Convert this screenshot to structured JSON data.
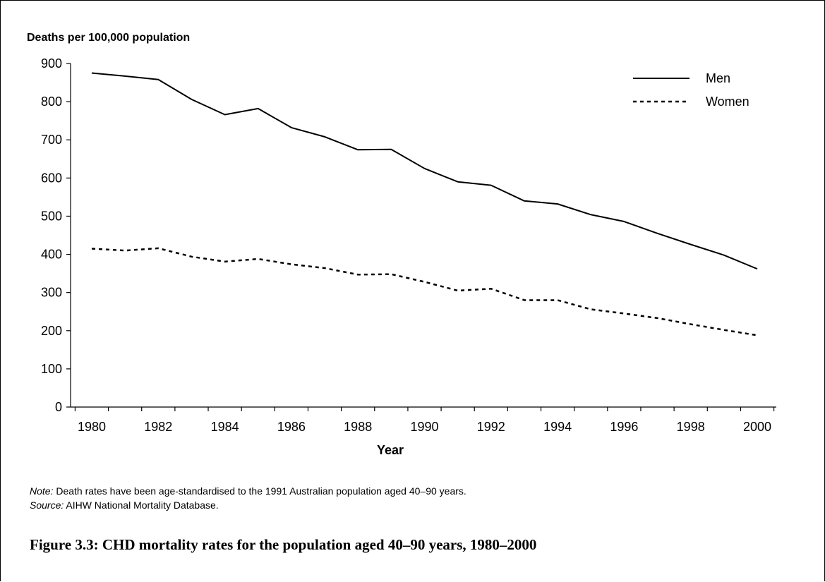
{
  "chart_data": {
    "type": "line",
    "ylabel": "Deaths per 100,000 population",
    "xlabel": "Year",
    "x": [
      1980,
      1981,
      1982,
      1983,
      1984,
      1985,
      1986,
      1987,
      1988,
      1989,
      1990,
      1991,
      1992,
      1993,
      1994,
      1995,
      1996,
      1997,
      1998,
      1999,
      2000
    ],
    "xticks": [
      "1980",
      "1982",
      "1984",
      "1986",
      "1988",
      "1990",
      "1992",
      "1994",
      "1996",
      "1998",
      "2000"
    ],
    "yticks": [
      "0",
      "100",
      "200",
      "300",
      "400",
      "500",
      "600",
      "700",
      "800",
      "900"
    ],
    "ylim": [
      0,
      900
    ],
    "grid": false,
    "legend_position": "top-right",
    "series": [
      {
        "name": "Men",
        "style": "solid",
        "values": [
          875,
          867,
          858,
          806,
          766,
          782,
          732,
          708,
          674,
          675,
          625,
          590,
          581,
          540,
          532,
          504,
          486,
          455,
          426,
          398,
          362
        ]
      },
      {
        "name": "Women",
        "style": "dashed",
        "values": [
          415,
          410,
          416,
          394,
          381,
          388,
          374,
          364,
          347,
          348,
          328,
          305,
          310,
          280,
          280,
          256,
          245,
          233,
          217,
          202,
          188
        ]
      }
    ]
  },
  "notes": {
    "note_label": "Note:",
    "note_text": " Death rates have been age-standardised to the 1991 Australian population aged 40–90 years.",
    "source_label": "Source:",
    "source_text": " AIHW National Mortality Database."
  },
  "caption": "Figure 3.3: CHD mortality rates for the population aged 40–90 years, 1980–2000"
}
